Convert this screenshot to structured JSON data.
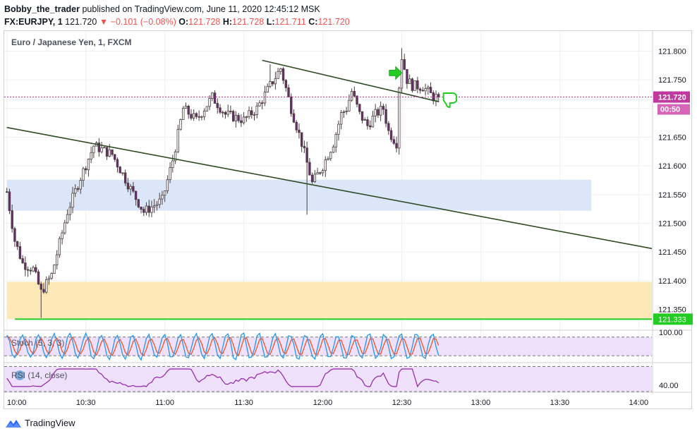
{
  "header": {
    "author": "Bobby_the_trader",
    "published": "published on TradingView.com, June 11, 2020 12:45:12 MSK",
    "symbol": "FX:EURJPY, 1",
    "last": "121.720",
    "change": "▼ −0.101 (−0.08%)",
    "o_label": "O:",
    "o_val": "121.728",
    "h_label": "H:",
    "h_val": "121.728",
    "l_label": "L:",
    "l_val": "121.711",
    "c_label": "C:",
    "c_val": "121.720"
  },
  "colors": {
    "up": "#4b3d3d",
    "down_body": "#6b2a72",
    "trend": "#2f4b24",
    "support": "#22cc22",
    "blue_zone": "#dbe7f8",
    "yellow_zone": "#fde9b8",
    "price_tag": "#c0399f",
    "stoch_bg": "#efe0fb",
    "stoch_k": "#2196f3",
    "stoch_d": "#f4511e",
    "rsi_line": "#8e24aa"
  },
  "footer": {
    "brand": "TradingView",
    "logo_icon": "tradingview-logo-icon"
  },
  "chart_data": [
    {
      "type": "candlestick",
      "title": "Euro / Japanese Yen, 1, FXCM",
      "xlabel": "",
      "ylabel": "",
      "timeframe": "1 min",
      "x_range": [
        "09:59",
        "14:05"
      ],
      "ylim": [
        121.315,
        121.835
      ],
      "yticks": [
        "121.800",
        "121.750",
        "121.700",
        "121.650",
        "121.600",
        "121.550",
        "121.500",
        "121.450",
        "121.400",
        "121.350"
      ],
      "xticks": [
        "10:00",
        "10:30",
        "11:00",
        "11:30",
        "12:00",
        "12:30",
        "13:00",
        "13:30",
        "14:00"
      ],
      "grid": true,
      "last_price": "121.720",
      "countdown": "00:50",
      "support_level": "121.333",
      "zones": [
        {
          "name": "resistance-zone",
          "from": "10:00",
          "to": "13:42",
          "y1": 121.522,
          "y2": 121.576
        },
        {
          "name": "demand-zone",
          "from": "10:00",
          "to": "14:05",
          "y1": 121.333,
          "y2": 121.398
        }
      ],
      "trendlines": [
        {
          "t1": "10:00",
          "p1": 121.667,
          "t2": "14:05",
          "p2": 121.456
        },
        {
          "t1": "11:37",
          "p1": 121.784,
          "t2": "12:44",
          "p2": 121.712
        }
      ],
      "key_points": [
        {
          "time": "10:13",
          "low": 121.335
        },
        {
          "time": "11:38",
          "high": 121.777
        },
        {
          "time": "11:54",
          "low": 121.515
        },
        {
          "time": "12:30",
          "high": 121.805
        },
        {
          "time": "12:44",
          "close": 121.72
        }
      ],
      "annotations": [
        {
          "type": "arrow-right",
          "time": "12:29",
          "price": 121.762,
          "color": "#22cc22"
        },
        {
          "type": "thumbs-down",
          "time": "12:48",
          "price": 121.717,
          "color": "#22cc22"
        }
      ]
    },
    {
      "type": "line",
      "title": "Stoch (5, 3, 3)",
      "xlabel": "",
      "ylabel": "",
      "ylim": [
        0,
        100
      ],
      "yticks": [
        "100.00"
      ],
      "levels": [
        80,
        20
      ],
      "series": [
        {
          "values": "oscillating 10-90, period ~6 min"
        },
        {
          "values": "smoothed %K"
        }
      ]
    },
    {
      "type": "line",
      "title": "RSI (14, close)",
      "xlabel": "",
      "ylabel": "",
      "ylim": [
        30,
        75
      ],
      "yticks": [
        "40.00"
      ],
      "levels": [
        70,
        30
      ],
      "series": [
        {
          "values": "fluctuating 42-62"
        }
      ]
    }
  ]
}
